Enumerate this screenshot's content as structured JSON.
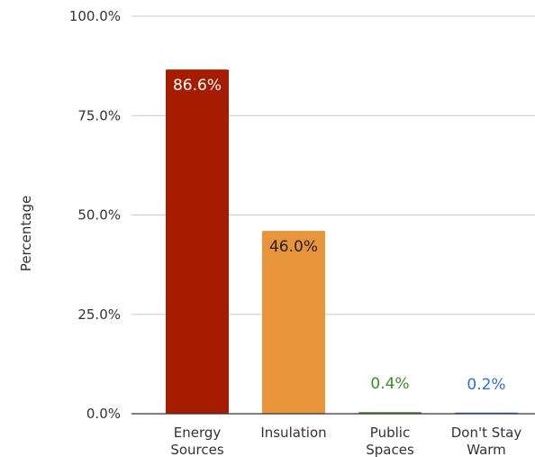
{
  "chart_data": {
    "type": "bar",
    "title": "",
    "xlabel": "",
    "ylabel": "Percentage",
    "ylim": [
      0,
      100
    ],
    "yticks": [
      {
        "value": 0,
        "label": "0.0%"
      },
      {
        "value": 25,
        "label": "25.0%"
      },
      {
        "value": 50,
        "label": "50.0%"
      },
      {
        "value": 75,
        "label": "75.0%"
      },
      {
        "value": 100,
        "label": "100.0%"
      }
    ],
    "grid": true,
    "legend": "none",
    "bars": [
      {
        "category": [
          "Energy",
          "Sources"
        ],
        "value": 86.6,
        "label": "86.6%",
        "color": "#a51c00",
        "label_color": "#ffffff",
        "label_position": "inside"
      },
      {
        "category": [
          "Insulation"
        ],
        "value": 46.0,
        "label": "46.0%",
        "color": "#e8943a",
        "label_color": "#222222",
        "label_position": "inside"
      },
      {
        "category": [
          "Public",
          "Spaces"
        ],
        "value": 0.4,
        "label": "0.4%",
        "color": "#3d8b2a",
        "label_color": "#3d8b2a",
        "label_position": "above"
      },
      {
        "category": [
          "Don't Stay",
          "Warm"
        ],
        "value": 0.2,
        "label": "0.2%",
        "color": "#2f6fd6",
        "label_color": "#2f6fd6",
        "label_position": "above"
      }
    ]
  }
}
